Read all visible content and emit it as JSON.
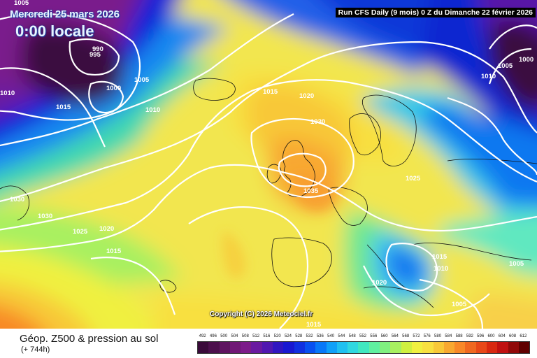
{
  "header": {
    "date": "Mercredi 25 mars 2026",
    "time": "0:00 locale",
    "run_info": "Run CFS Daily (9 mois) 0 Z du Dimanche 22 février 2026"
  },
  "copyright": "Copyright (C) 2026 Meteociel.fr",
  "legend": {
    "title": "Géop. Z500 & pression au sol",
    "subtitle": "(+ 744h)",
    "scale_values": [
      "492",
      "496",
      "500",
      "504",
      "508",
      "512",
      "516",
      "520",
      "524",
      "528",
      "532",
      "536",
      "540",
      "544",
      "548",
      "552",
      "556",
      "560",
      "564",
      "568",
      "572",
      "576",
      "580",
      "584",
      "588",
      "592",
      "596",
      "600",
      "604",
      "608",
      "612"
    ],
    "scale_colors": [
      "#3a0a3a",
      "#4c0f4c",
      "#5e1460",
      "#701876",
      "#7c1c8a",
      "#6a1aa0",
      "#5018b0",
      "#3016c0",
      "#1818d0",
      "#1030e0",
      "#0850f0",
      "#0878f8",
      "#10a0f8",
      "#20c0f0",
      "#30d8e0",
      "#40e8c0",
      "#60f0a0",
      "#80f080",
      "#a8f060",
      "#d0f040",
      "#f0f040",
      "#f8e040",
      "#f8c838",
      "#f8a830",
      "#f88828",
      "#f06820",
      "#e84818",
      "#d82810",
      "#c01010",
      "#900808",
      "#600000"
    ]
  },
  "isobar_labels": [
    "1005",
    "990",
    "995",
    "1000",
    "1005",
    "1010",
    "1015",
    "1010",
    "1015",
    "1020",
    "1030",
    "1035",
    "1025",
    "1030",
    "1030",
    "1025",
    "1020",
    "1015",
    "1015",
    "1010",
    "1005",
    "1020",
    "1005",
    "1010",
    "1005",
    "1000",
    "1015"
  ],
  "colors": {
    "text_outline": "#1a3fa0",
    "run_info_bg": "#000000",
    "isobar": "#ffffff"
  }
}
